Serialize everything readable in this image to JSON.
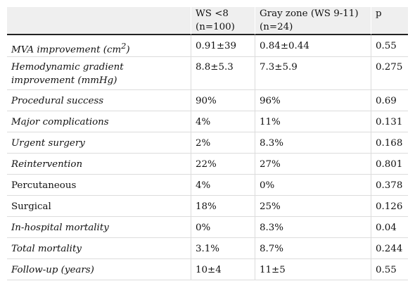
{
  "table": {
    "headers": [
      {
        "line1": "",
        "line2": ""
      },
      {
        "line1": "WS <8",
        "line2": "(n=100)"
      },
      {
        "line1": "Gray zone (WS 9-11)",
        "line2": "(n=24)"
      },
      {
        "line1": "p",
        "line2": ""
      }
    ],
    "rows": [
      {
        "label": "MVA improvement (cm",
        "label_sup": "2",
        "label_tail": ")",
        "italic": true,
        "ws": "0.91±39",
        "gray": "0.84±0.44",
        "p": "0.55"
      },
      {
        "label": "Hemodynamic gradient improvement (mmHg)",
        "italic": true,
        "ws": "8.8±5.3",
        "gray": "7.3±5.9",
        "p": "0.275"
      },
      {
        "label": "Procedural success",
        "italic": true,
        "ws": "90%",
        "gray": "96%",
        "p": "0.69"
      },
      {
        "label": "Major complications",
        "italic": true,
        "ws": "4%",
        "gray": "11%",
        "p": "0.131"
      },
      {
        "label": "Urgent surgery",
        "italic": true,
        "ws": "2%",
        "gray": "8.3%",
        "p": "0.168"
      },
      {
        "label": "Reintervention",
        "italic": true,
        "ws": "22%",
        "gray": "27%",
        "p": "0.801"
      },
      {
        "label": "Percutaneous",
        "italic": false,
        "ws": "4%",
        "gray": "0%",
        "p": "0.378"
      },
      {
        "label": "Surgical",
        "italic": false,
        "ws": "18%",
        "gray": "25%",
        "p": "0.126"
      },
      {
        "label": "In-hospital mortality",
        "italic": true,
        "ws": "0%",
        "gray": "8.3%",
        "p": "0.04"
      },
      {
        "label": "Total mortality",
        "italic": true,
        "ws": "3.1%",
        "gray": "8.7%",
        "p": "0.244"
      },
      {
        "label": "Follow-up (years)",
        "italic": true,
        "ws": "10±4",
        "gray": "11±5",
        "p": "0.55"
      }
    ]
  }
}
